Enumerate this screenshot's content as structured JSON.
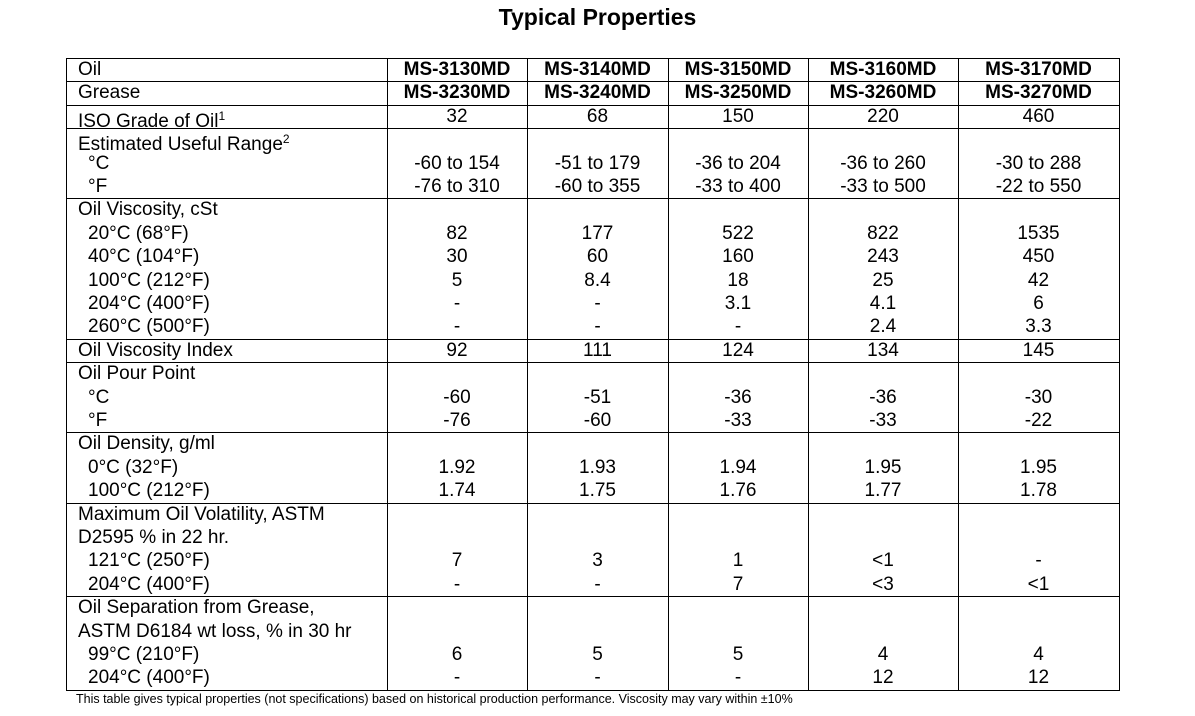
{
  "title": "Typical Properties",
  "table": {
    "blocks": [
      {
        "lines": [
          [
            "Oil",
            "MS-3130MD",
            "MS-3140MD",
            "MS-3150MD",
            "MS-3160MD",
            "MS-3170MD"
          ]
        ]
      },
      {
        "lines": [
          [
            "Grease",
            "MS-3230MD",
            "MS-3240MD",
            "MS-3250MD",
            "MS-3260MD",
            "MS-3270MD"
          ]
        ]
      },
      {
        "lines": [
          [
            {
              "text": "ISO Grade of Oil",
              "note": "1"
            },
            "32",
            "68",
            "150",
            "220",
            "460"
          ]
        ]
      },
      {
        "lines": [
          [
            {
              "text": "Estimated Useful Range",
              "note": "2"
            }
          ],
          [
            "°C",
            "-60 to 154",
            "-51 to 179",
            "-36 to 204",
            "-36 to 260",
            "-30 to 288"
          ],
          [
            "°F",
            "-76 to 310",
            "-60 to 355",
            "-33 to 400",
            "-33 to 500",
            "-22 to 550"
          ]
        ]
      },
      {
        "lines": [
          [
            "Oil Viscosity, cSt"
          ],
          [
            "20°C (68°F)",
            "82",
            "177",
            "522",
            "822",
            "1535"
          ],
          [
            "40°C (104°F)",
            "30",
            "60",
            "160",
            "243",
            "450"
          ],
          [
            "100°C (212°F)",
            "5",
            "8.4",
            "18",
            "25",
            "42"
          ],
          [
            "204°C (400°F)",
            "-",
            "-",
            "3.1",
            "4.1",
            "6"
          ],
          [
            "260°C (500°F)",
            "-",
            "-",
            "-",
            "2.4",
            "3.3"
          ]
        ]
      },
      {
        "lines": [
          [
            "Oil Viscosity Index",
            "92",
            "111",
            "124",
            "134",
            "145"
          ]
        ]
      },
      {
        "lines": [
          [
            "Oil Pour Point"
          ],
          [
            "°C",
            "-60",
            "-51",
            "-36",
            "-36",
            "-30"
          ],
          [
            "°F",
            "-76",
            "-60",
            "-33",
            "-33",
            "-22"
          ]
        ]
      },
      {
        "lines": [
          [
            "Oil Density, g/ml"
          ],
          [
            "0°C (32°F)",
            "1.92",
            "1.93",
            "1.94",
            "1.95",
            "1.95"
          ],
          [
            "100°C (212°F)",
            "1.74",
            "1.75",
            "1.76",
            "1.77",
            "1.78"
          ]
        ]
      },
      {
        "lines": [
          [
            "Maximum Oil Volatility, ASTM"
          ],
          [
            "D2595 % in 22 hr."
          ],
          [
            "121°C (250°F)",
            "7",
            "3",
            "1",
            "<1",
            "-"
          ],
          [
            "204°C (400°F)",
            "-",
            "-",
            "7",
            "<3",
            "<1"
          ]
        ]
      },
      {
        "lines": [
          [
            "Oil Separation from Grease,"
          ],
          [
            "ASTM D6184 wt loss, % in 30 hr"
          ],
          [
            "99°C (210°F)",
            "6",
            "5",
            "5",
            "4",
            "4"
          ],
          [
            "204°C (400°F)",
            "-",
            "-",
            "-",
            "12",
            "12"
          ]
        ]
      }
    ]
  },
  "footnote": "This table gives typical properties (not specifications) based on historical production performance. Viscosity may vary within ±10%"
}
